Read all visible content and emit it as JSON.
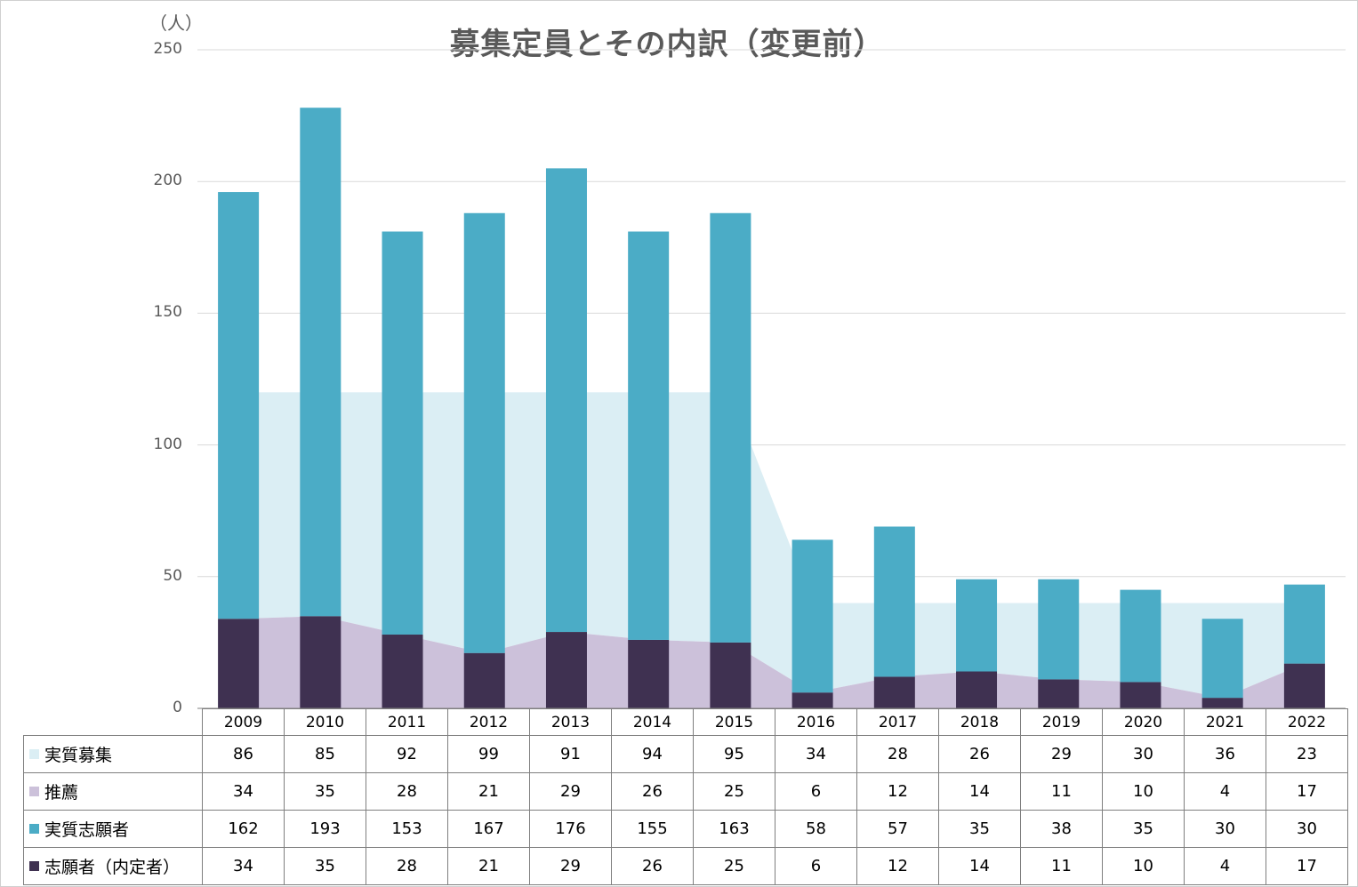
{
  "chart_data": {
    "type": "bar",
    "title": "募集定員とその内訳（変更前）",
    "unit_label": "（人）",
    "ylim": [
      0,
      250
    ],
    "yticks": [
      0,
      50,
      100,
      150,
      200,
      250
    ],
    "grid": true,
    "categories": [
      "2009",
      "2010",
      "2011",
      "2012",
      "2013",
      "2014",
      "2015",
      "2016",
      "2017",
      "2018",
      "2019",
      "2020",
      "2021",
      "2022"
    ],
    "series": [
      {
        "name": "実質募集",
        "kind": "stacked-area",
        "color": "#dbeef4",
        "values": [
          86,
          85,
          92,
          99,
          91,
          94,
          95,
          34,
          28,
          26,
          29,
          30,
          36,
          23
        ]
      },
      {
        "name": "推薦",
        "kind": "area",
        "color": "#ccc1da",
        "values": [
          34,
          35,
          28,
          21,
          29,
          26,
          25,
          6,
          12,
          14,
          11,
          10,
          4,
          17
        ]
      },
      {
        "name": "実質志願者",
        "kind": "stacked-bar",
        "color": "#4bacc6",
        "values": [
          162,
          193,
          153,
          167,
          176,
          155,
          163,
          58,
          57,
          35,
          38,
          35,
          30,
          30
        ]
      },
      {
        "name": "志願者（内定者）",
        "kind": "bar",
        "color": "#3f3151",
        "values": [
          34,
          35,
          28,
          21,
          29,
          26,
          25,
          6,
          12,
          14,
          11,
          10,
          4,
          17
        ]
      }
    ]
  }
}
